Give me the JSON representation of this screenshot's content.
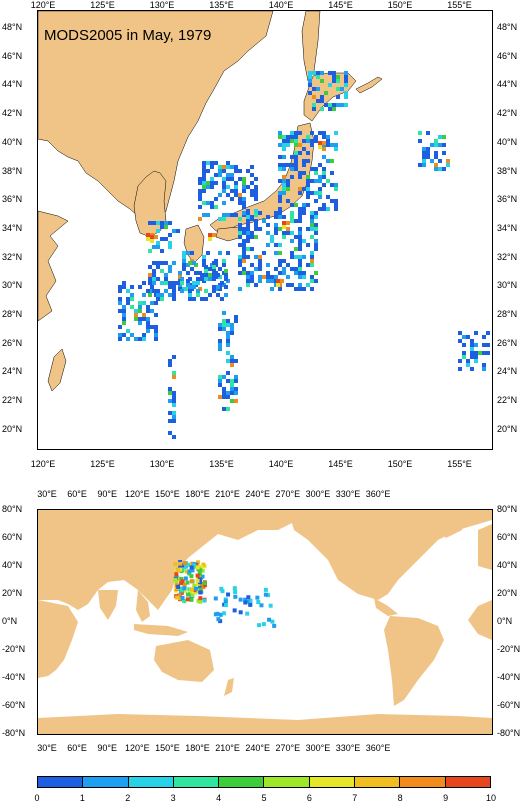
{
  "top_map": {
    "title": "MODS2005 in May, 1979",
    "lon_labels": [
      "120°E",
      "125°E",
      "130°E",
      "135°E",
      "140°E",
      "145°E",
      "150°E",
      "155°E"
    ],
    "lat_labels": [
      "48°N",
      "46°N",
      "44°N",
      "42°N",
      "40°N",
      "38°N",
      "36°N",
      "34°N",
      "32°N",
      "30°N",
      "28°N",
      "26°N",
      "24°N",
      "22°N",
      "20°N"
    ]
  },
  "bottom_map": {
    "lon_labels": [
      "30°E",
      "60°E",
      "90°E",
      "120°E",
      "150°E",
      "180°E",
      "210°E",
      "240°E",
      "270°E",
      "300°E",
      "330°E",
      "360°E"
    ],
    "lat_labels": [
      "80°N",
      "60°N",
      "40°N",
      "20°N",
      "0°N",
      "-20°N",
      "-40°N",
      "-60°N",
      "-80°N"
    ]
  },
  "colorbar": {
    "labels": [
      "0",
      "1",
      "2",
      "3",
      "4",
      "5",
      "6",
      "7",
      "8",
      "9",
      "10"
    ],
    "colors": [
      "#1e5ee0",
      "#1e9ef0",
      "#28d2e6",
      "#2ee6a0",
      "#3ccc3c",
      "#9ee628",
      "#e6e628",
      "#f0be1e",
      "#f08c1e",
      "#e6461e"
    ]
  },
  "colors": {
    "land": "#f0c487",
    "ocean": "#ffffff"
  }
}
